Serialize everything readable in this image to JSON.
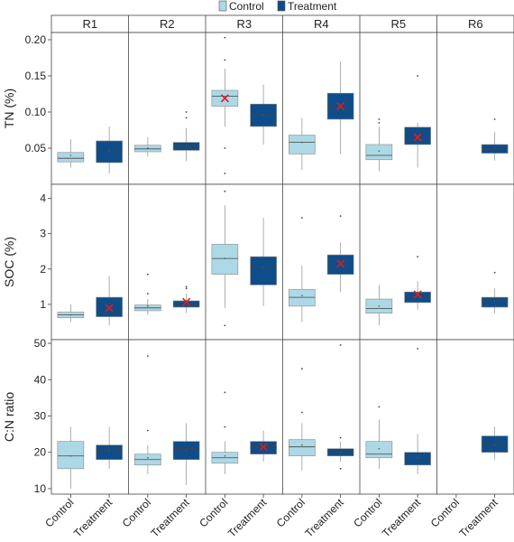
{
  "chart_data": {
    "type": "box",
    "legend": {
      "placement": "top",
      "entries": [
        {
          "name": "Control",
          "color": "#add8e6"
        },
        {
          "name": "Treatment",
          "color": "#0f4c8a"
        }
      ]
    },
    "categories": [
      "Control",
      "Treatment"
    ],
    "sites": [
      "R1",
      "R2",
      "R3",
      "R4",
      "R5",
      "R6"
    ],
    "mean_marker_color": "#e31a1c",
    "panels": [
      {
        "ylabel": "TN (%)",
        "ylim": [
          0.0,
          0.21
        ],
        "yticks": [
          "0.05",
          "0.10",
          "0.15",
          "0.20"
        ],
        "boxes": [
          {
            "site": "R1",
            "group": "Control",
            "min": 0.023,
            "q1": 0.031,
            "median": 0.036,
            "q3": 0.044,
            "max": 0.062,
            "outliers": [],
            "mean": 0.04,
            "mean_x": false
          },
          {
            "site": "R1",
            "group": "Treatment",
            "min": 0.015,
            "q1": 0.03,
            "median": 0.046,
            "q3": 0.06,
            "max": 0.08,
            "outliers": [],
            "mean": 0.046,
            "mean_x": false
          },
          {
            "site": "R2",
            "group": "Control",
            "min": 0.038,
            "q1": 0.045,
            "median": 0.049,
            "q3": 0.054,
            "max": 0.065,
            "outliers": [],
            "mean": 0.05,
            "mean_x": false
          },
          {
            "site": "R2",
            "group": "Treatment",
            "min": 0.032,
            "q1": 0.047,
            "median": 0.052,
            "q3": 0.058,
            "max": 0.078,
            "outliers": [
              0.092,
              0.1
            ],
            "mean": 0.053,
            "mean_x": false
          },
          {
            "site": "R3",
            "group": "Control",
            "min": 0.08,
            "q1": 0.108,
            "median": 0.122,
            "q3": 0.13,
            "max": 0.16,
            "outliers": [
              0.203,
              0.172,
              0.05,
              0.015
            ],
            "mean": 0.119,
            "mean_x": true
          },
          {
            "site": "R3",
            "group": "Treatment",
            "min": 0.055,
            "q1": 0.08,
            "median": 0.096,
            "q3": 0.111,
            "max": 0.138,
            "outliers": [],
            "mean": 0.096,
            "mean_x": false
          },
          {
            "site": "R4",
            "group": "Control",
            "min": 0.02,
            "q1": 0.042,
            "median": 0.058,
            "q3": 0.068,
            "max": 0.092,
            "outliers": [],
            "mean": 0.058,
            "mean_x": false
          },
          {
            "site": "R4",
            "group": "Treatment",
            "min": 0.042,
            "q1": 0.09,
            "median": 0.108,
            "q3": 0.126,
            "max": 0.17,
            "outliers": [],
            "mean": 0.108,
            "mean_x": true
          },
          {
            "site": "R5",
            "group": "Control",
            "min": 0.018,
            "q1": 0.034,
            "median": 0.04,
            "q3": 0.055,
            "max": 0.08,
            "outliers": [
              0.085,
              0.09
            ],
            "mean": 0.046,
            "mean_x": false
          },
          {
            "site": "R5",
            "group": "Treatment",
            "min": 0.023,
            "q1": 0.055,
            "median": 0.067,
            "q3": 0.079,
            "max": 0.085,
            "outliers": [
              0.15
            ],
            "mean": 0.065,
            "mean_x": true
          },
          {
            "site": "R6",
            "group": "Treatment",
            "min": 0.033,
            "q1": 0.043,
            "median": 0.05,
            "q3": 0.055,
            "max": 0.072,
            "outliers": [
              0.09
            ],
            "mean": 0.05,
            "mean_x": false
          }
        ]
      },
      {
        "ylabel": "SOC (%)",
        "ylim": [
          0.0,
          4.4
        ],
        "yticks": [
          "1",
          "2",
          "3",
          "4"
        ],
        "boxes": [
          {
            "site": "R1",
            "group": "Control",
            "min": 0.5,
            "q1": 0.62,
            "median": 0.7,
            "q3": 0.78,
            "max": 1.0,
            "outliers": [],
            "mean": 0.7,
            "mean_x": false
          },
          {
            "site": "R1",
            "group": "Treatment",
            "min": 0.4,
            "q1": 0.65,
            "median": 0.85,
            "q3": 1.2,
            "max": 1.8,
            "outliers": [],
            "mean": 0.9,
            "mean_x": true
          },
          {
            "site": "R2",
            "group": "Control",
            "min": 0.7,
            "q1": 0.82,
            "median": 0.9,
            "q3": 0.98,
            "max": 1.15,
            "outliers": [
              1.3,
              1.85
            ],
            "mean": 0.95,
            "mean_x": false
          },
          {
            "site": "R2",
            "group": "Treatment",
            "min": 0.75,
            "q1": 0.92,
            "median": 1.0,
            "q3": 1.1,
            "max": 1.3,
            "outliers": [
              1.45,
              1.5
            ],
            "mean": 1.07,
            "mean_x": true
          },
          {
            "site": "R3",
            "group": "Control",
            "min": 0.9,
            "q1": 1.85,
            "median": 2.3,
            "q3": 2.7,
            "max": 3.8,
            "outliers": [
              4.2,
              0.4
            ],
            "mean": 2.3,
            "mean_x": false
          },
          {
            "site": "R3",
            "group": "Treatment",
            "min": 0.95,
            "q1": 1.55,
            "median": 2.05,
            "q3": 2.35,
            "max": 3.45,
            "outliers": [],
            "mean": 2.05,
            "mean_x": false
          },
          {
            "site": "R4",
            "group": "Control",
            "min": 0.5,
            "q1": 0.95,
            "median": 1.2,
            "q3": 1.42,
            "max": 2.1,
            "outliers": [
              3.45
            ],
            "mean": 1.25,
            "mean_x": false
          },
          {
            "site": "R4",
            "group": "Treatment",
            "min": 1.35,
            "q1": 1.85,
            "median": 2.1,
            "q3": 2.4,
            "max": 2.75,
            "outliers": [
              3.5
            ],
            "mean": 2.15,
            "mean_x": true
          },
          {
            "site": "R5",
            "group": "Control",
            "min": 0.4,
            "q1": 0.75,
            "median": 0.88,
            "q3": 1.15,
            "max": 1.55,
            "outliers": [],
            "mean": 0.95,
            "mean_x": false
          },
          {
            "site": "R5",
            "group": "Treatment",
            "min": 0.85,
            "q1": 1.05,
            "median": 1.2,
            "q3": 1.35,
            "max": 1.65,
            "outliers": [
              2.35
            ],
            "mean": 1.28,
            "mean_x": true
          },
          {
            "site": "R6",
            "group": "Treatment",
            "min": 0.75,
            "q1": 0.92,
            "median": 1.1,
            "q3": 1.2,
            "max": 1.45,
            "outliers": [
              1.9
            ],
            "mean": 1.1,
            "mean_x": false
          }
        ]
      },
      {
        "ylabel": "C:N ratio",
        "ylim": [
          8.5,
          51
        ],
        "yticks": [
          "10",
          "20",
          "30",
          "40",
          "50"
        ],
        "boxes": [
          {
            "site": "R1",
            "group": "Control",
            "min": 10,
            "q1": 15.5,
            "median": 19,
            "q3": 23,
            "max": 27,
            "outliers": [],
            "mean": 19,
            "mean_x": false
          },
          {
            "site": "R1",
            "group": "Treatment",
            "min": 15.5,
            "q1": 18,
            "median": 20.5,
            "q3": 22,
            "max": 27,
            "outliers": [],
            "mean": 20.5,
            "mean_x": false
          },
          {
            "site": "R2",
            "group": "Control",
            "min": 14,
            "q1": 16.5,
            "median": 18,
            "q3": 19.5,
            "max": 22,
            "outliers": [
              26,
              46.5
            ],
            "mean": 18.5,
            "mean_x": false
          },
          {
            "site": "R2",
            "group": "Treatment",
            "min": 11,
            "q1": 18,
            "median": 21,
            "q3": 23,
            "max": 28,
            "outliers": [],
            "mean": 20.5,
            "mean_x": false
          },
          {
            "site": "R3",
            "group": "Control",
            "min": 14,
            "q1": 17,
            "median": 18.5,
            "q3": 20,
            "max": 23,
            "outliers": [
              27,
              36.5
            ],
            "mean": 19,
            "mean_x": false
          },
          {
            "site": "R3",
            "group": "Treatment",
            "min": 17.5,
            "q1": 19.5,
            "median": 21.5,
            "q3": 23,
            "max": 26,
            "outliers": [],
            "mean": 21.5,
            "mean_x": true
          },
          {
            "site": "R4",
            "group": "Control",
            "min": 15,
            "q1": 19,
            "median": 21.5,
            "q3": 23.5,
            "max": 28,
            "outliers": [
              31,
              43
            ],
            "mean": 22,
            "mean_x": false
          },
          {
            "site": "R4",
            "group": "Treatment",
            "min": 17.5,
            "q1": 19,
            "median": 20,
            "q3": 21,
            "max": 23,
            "outliers": [
              15.5,
              24,
              49.5
            ],
            "mean": 20,
            "mean_x": false
          },
          {
            "site": "R5",
            "group": "Control",
            "min": 15.5,
            "q1": 18.5,
            "median": 19.5,
            "q3": 23,
            "max": 29,
            "outliers": [
              32.5
            ],
            "mean": 21,
            "mean_x": false
          },
          {
            "site": "R5",
            "group": "Treatment",
            "min": 14,
            "q1": 16.5,
            "median": 18.5,
            "q3": 20,
            "max": 25,
            "outliers": [
              48.5
            ],
            "mean": 18.5,
            "mean_x": false
          },
          {
            "site": "R6",
            "group": "Treatment",
            "min": 18,
            "q1": 20,
            "median": 22,
            "q3": 24.5,
            "max": 27,
            "outliers": [],
            "mean": 22,
            "mean_x": false
          }
        ]
      }
    ]
  }
}
